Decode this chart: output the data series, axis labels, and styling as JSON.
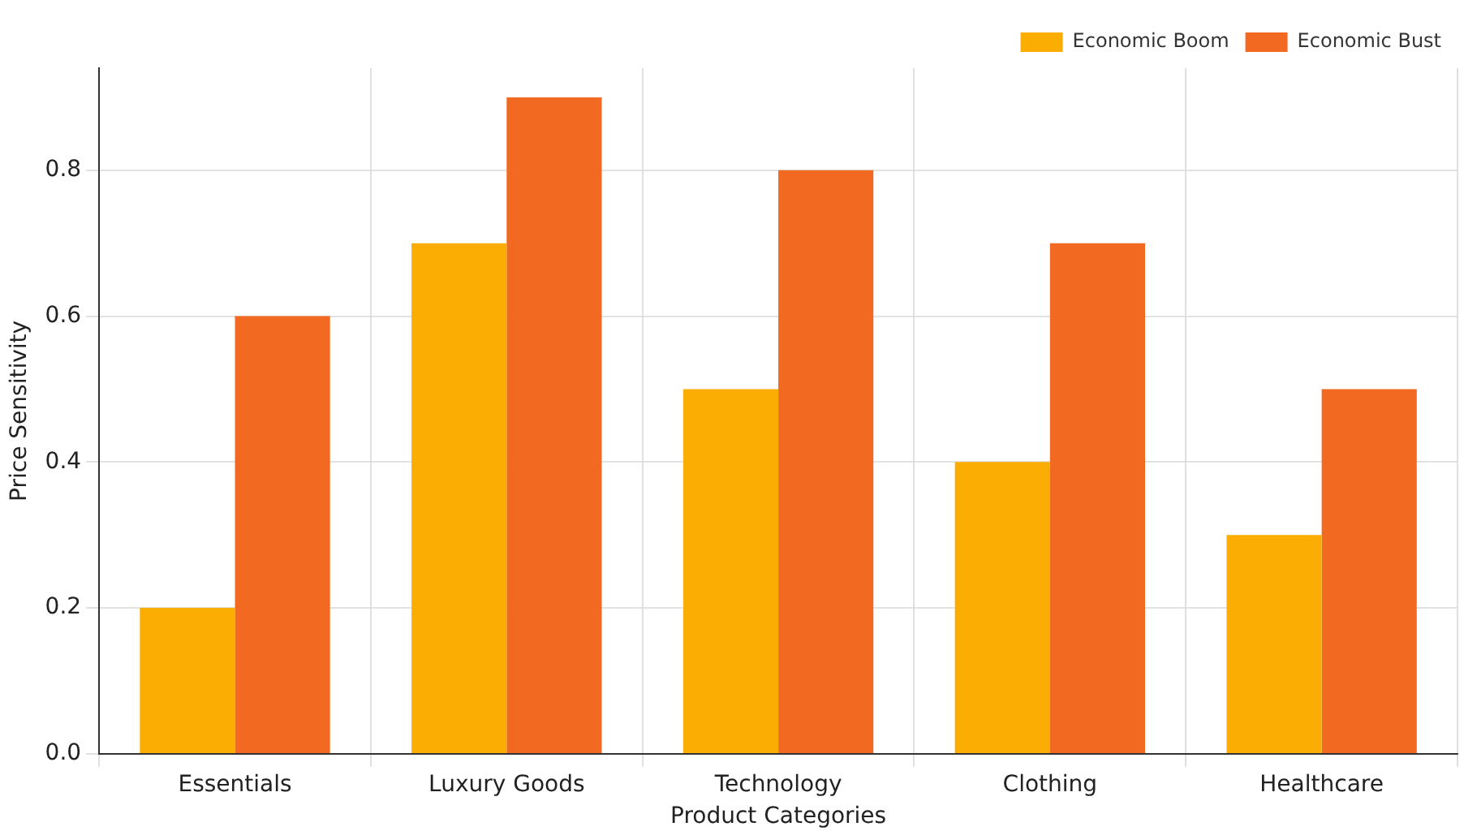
{
  "chart_data": {
    "type": "bar",
    "xlabel": "Product Categories",
    "ylabel": "Price Sensitivity",
    "categories": [
      "Essentials",
      "Luxury Goods",
      "Technology",
      "Clothing",
      "Healthcare"
    ],
    "series": [
      {
        "name": "Economic Boom",
        "color": "#fcad03",
        "values": [
          0.2,
          0.7,
          0.5,
          0.4,
          0.3
        ]
      },
      {
        "name": "Economic Bust",
        "color": "#f26a22",
        "values": [
          0.6,
          0.9,
          0.8,
          0.7,
          0.5
        ]
      }
    ],
    "ylim": [
      0,
      0.94
    ],
    "yticks": [
      {
        "value": 0,
        "label": "0.0"
      },
      {
        "value": 0.2,
        "label": "0.2"
      },
      {
        "value": 0.4,
        "label": "0.4"
      },
      {
        "value": 0.6,
        "label": "0.6"
      },
      {
        "value": 0.8,
        "label": "0.8"
      }
    ],
    "grid": true,
    "legend": "top right"
  }
}
